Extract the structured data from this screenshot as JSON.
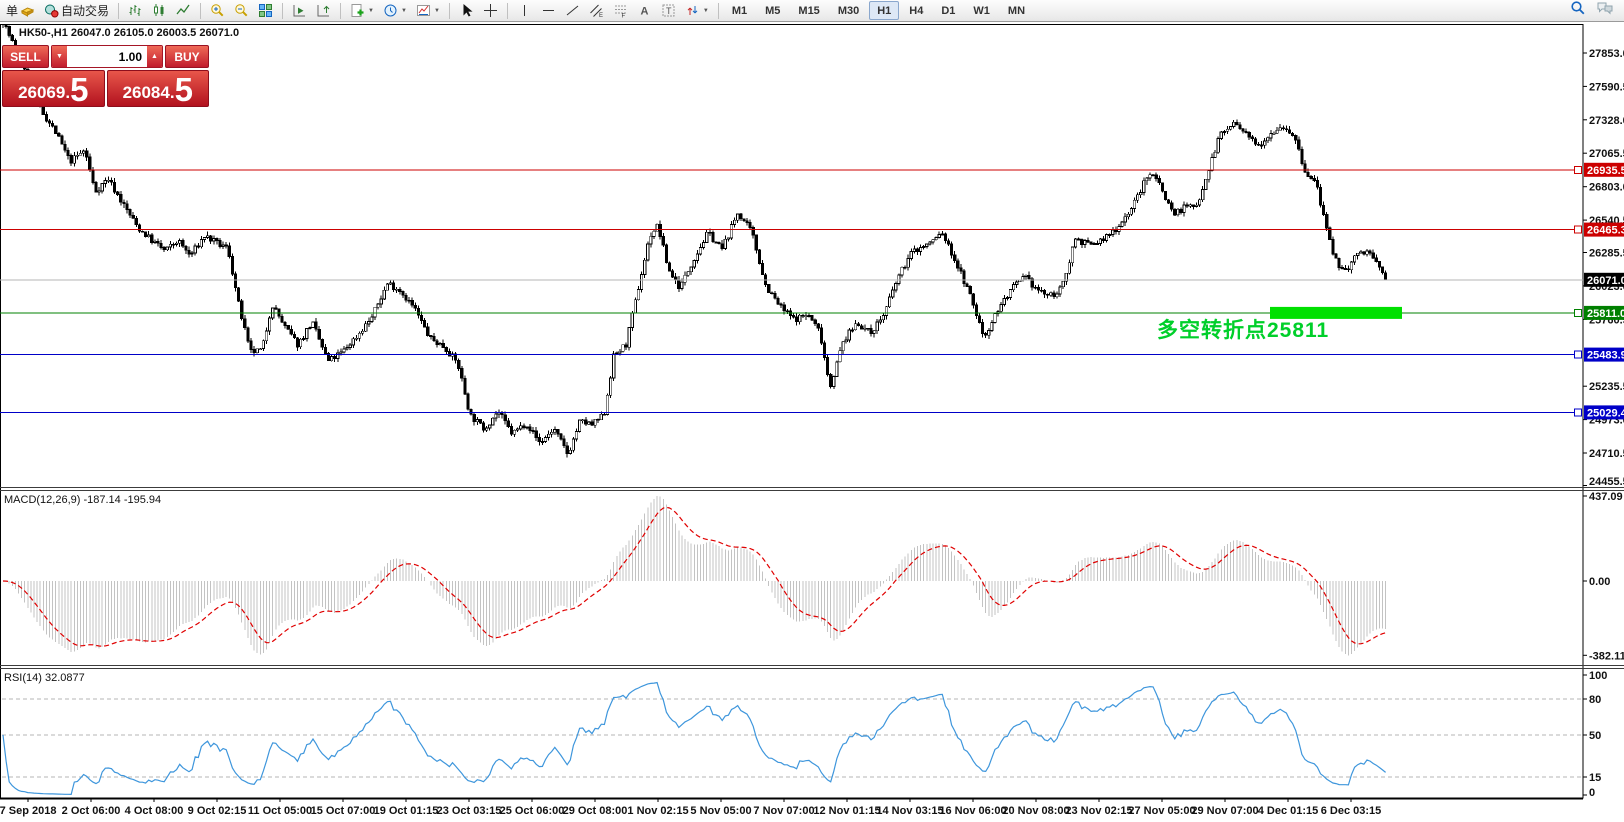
{
  "toolbar": {
    "new_order_label": "单",
    "autotrading_label": "自动交易",
    "timeframes": [
      "M1",
      "M5",
      "M15",
      "M30",
      "H1",
      "H4",
      "D1",
      "W1",
      "MN"
    ],
    "active_timeframe": "H1"
  },
  "chart_header": {
    "marker": "▲",
    "text": "HK50-,H1 26047.0 26105.0 26003.5 26071.0"
  },
  "one_click_panel": {
    "sell_label": "SELL",
    "buy_label": "BUY",
    "volume": "1.00",
    "sell_price": {
      "main": "26069",
      "point": ".",
      "big": "5"
    },
    "buy_price": {
      "main": "26084",
      "point": ".",
      "big": "5"
    }
  },
  "annotation": {
    "text": "多空转折点25811",
    "color": "#00cf2a"
  },
  "hlines": [
    {
      "price": 26935.5,
      "label": "26935.5",
      "color": "#cc0000",
      "type": "resistance"
    },
    {
      "price": 26465.3,
      "label": "26465.3",
      "color": "#cc0000",
      "type": "resistance"
    },
    {
      "price": 26071.0,
      "label": "26071.0",
      "color": "#b4b4b4",
      "label_bg": "#000000",
      "type": "current-price"
    },
    {
      "price": 25811.0,
      "label": "25811.0",
      "color": "#008000",
      "type": "pivot"
    },
    {
      "price": 25483.9,
      "label": "25483.9",
      "color": "#0000c8",
      "type": "support"
    },
    {
      "price": 25029.4,
      "label": "25029.4",
      "color": "#0000c8",
      "type": "support"
    }
  ],
  "highlight_bar": {
    "price": 25811.0,
    "color": "#00e000"
  },
  "price_axis_ticks": [
    "27853.0",
    "27590.5",
    "27328.0",
    "27065.5",
    "26803.0",
    "26540.5",
    "26285.5",
    "26023.0",
    "25760.5",
    "25235.5",
    "24973.0",
    "24710.5",
    "24455.5"
  ],
  "indicators": {
    "macd": {
      "label": "MACD(12,26,9) -187.14 -195.94",
      "params": [
        12,
        26,
        9
      ],
      "value": -187.14,
      "signal": -195.94,
      "axis_ticks": [
        "437.09",
        "0.00",
        "-382.11"
      ],
      "axis_values": [
        437.09,
        0,
        -382.11
      ],
      "histogram_color": "#c3c3c3",
      "signal_color": "#e00000"
    },
    "rsi": {
      "label": "RSI(14) 32.0877",
      "period": 14,
      "value": 32.0877,
      "axis_ticks": [
        "100",
        "80",
        "50",
        "15",
        "0"
      ],
      "axis_values": [
        100,
        80,
        50,
        15,
        0
      ],
      "levels": [
        80,
        50,
        15
      ],
      "line_color": "#3e96dc"
    }
  },
  "date_axis": [
    "7 Sep 2018",
    "2 Oct 06:00",
    "4 Oct 08:00",
    "9 Oct 02:15",
    "11 Oct 05:00",
    "15 Oct 07:00",
    "19 Oct 01:15",
    "23 Oct 03:15",
    "25 Oct 06:00",
    "29 Oct 08:00",
    "1 Nov 02:15",
    "5 Nov 05:00",
    "7 Nov 07:00",
    "12 Nov 01:15",
    "14 Nov 03:15",
    "16 Nov 06:00",
    "20 Nov 08:00",
    "23 Nov 02:15",
    "27 Nov 05:00",
    "29 Nov 07:00",
    "4 Dec 01:15",
    "6 Dec 03:15"
  ],
  "chart_data": {
    "type": "candlestick",
    "symbol": "HK50-",
    "timeframe": "H1",
    "ohlc": {
      "open": 26047.0,
      "high": 26105.0,
      "low": 26003.5,
      "close": 26071.0
    },
    "bid": 26069.5,
    "ask": 26084.5,
    "ylim": [
      24455.5,
      27853.0
    ],
    "bull_color": "#ffffff",
    "bear_color": "#000000",
    "price_path": [
      [
        0,
        28160
      ],
      [
        20,
        27800
      ],
      [
        38,
        27440
      ],
      [
        55,
        27240
      ],
      [
        70,
        27000
      ],
      [
        85,
        27090
      ],
      [
        95,
        26760
      ],
      [
        108,
        26870
      ],
      [
        122,
        26680
      ],
      [
        138,
        26480
      ],
      [
        152,
        26380
      ],
      [
        165,
        26300
      ],
      [
        178,
        26380
      ],
      [
        190,
        26260
      ],
      [
        205,
        26420
      ],
      [
        218,
        26350
      ],
      [
        228,
        26320
      ],
      [
        238,
        25900
      ],
      [
        250,
        25500
      ],
      [
        262,
        25520
      ],
      [
        272,
        25880
      ],
      [
        285,
        25700
      ],
      [
        298,
        25560
      ],
      [
        312,
        25740
      ],
      [
        328,
        25430
      ],
      [
        342,
        25500
      ],
      [
        358,
        25640
      ],
      [
        372,
        25780
      ],
      [
        388,
        26050
      ],
      [
        400,
        25990
      ],
      [
        415,
        25840
      ],
      [
        430,
        25610
      ],
      [
        445,
        25540
      ],
      [
        458,
        25410
      ],
      [
        470,
        25010
      ],
      [
        484,
        24900
      ],
      [
        498,
        25040
      ],
      [
        512,
        24860
      ],
      [
        526,
        24950
      ],
      [
        540,
        24790
      ],
      [
        554,
        24900
      ],
      [
        568,
        24700
      ],
      [
        580,
        24960
      ],
      [
        592,
        24930
      ],
      [
        604,
        25010
      ],
      [
        614,
        25480
      ],
      [
        626,
        25560
      ],
      [
        638,
        25990
      ],
      [
        650,
        26420
      ],
      [
        658,
        26500
      ],
      [
        668,
        26160
      ],
      [
        680,
        26010
      ],
      [
        694,
        26240
      ],
      [
        708,
        26440
      ],
      [
        722,
        26310
      ],
      [
        738,
        26600
      ],
      [
        752,
        26440
      ],
      [
        766,
        26020
      ],
      [
        780,
        25860
      ],
      [
        794,
        25760
      ],
      [
        808,
        25800
      ],
      [
        820,
        25660
      ],
      [
        830,
        25230
      ],
      [
        843,
        25580
      ],
      [
        857,
        25740
      ],
      [
        870,
        25650
      ],
      [
        884,
        25800
      ],
      [
        898,
        26090
      ],
      [
        912,
        26290
      ],
      [
        928,
        26350
      ],
      [
        942,
        26440
      ],
      [
        956,
        26210
      ],
      [
        970,
        25950
      ],
      [
        984,
        25620
      ],
      [
        998,
        25840
      ],
      [
        1012,
        26000
      ],
      [
        1025,
        26090
      ],
      [
        1038,
        25990
      ],
      [
        1050,
        25940
      ],
      [
        1062,
        26000
      ],
      [
        1075,
        26400
      ],
      [
        1090,
        26340
      ],
      [
        1104,
        26390
      ],
      [
        1118,
        26490
      ],
      [
        1132,
        26640
      ],
      [
        1146,
        26860
      ],
      [
        1154,
        26920
      ],
      [
        1164,
        26740
      ],
      [
        1174,
        26590
      ],
      [
        1186,
        26650
      ],
      [
        1196,
        26640
      ],
      [
        1220,
        27210
      ],
      [
        1234,
        27300
      ],
      [
        1248,
        27190
      ],
      [
        1260,
        27140
      ],
      [
        1272,
        27240
      ],
      [
        1284,
        27280
      ],
      [
        1294,
        27200
      ],
      [
        1306,
        26890
      ],
      [
        1316,
        26840
      ],
      [
        1326,
        26480
      ],
      [
        1334,
        26230
      ],
      [
        1346,
        26140
      ],
      [
        1356,
        26260
      ],
      [
        1368,
        26300
      ],
      [
        1380,
        26160
      ],
      [
        1388,
        26071
      ]
    ]
  }
}
